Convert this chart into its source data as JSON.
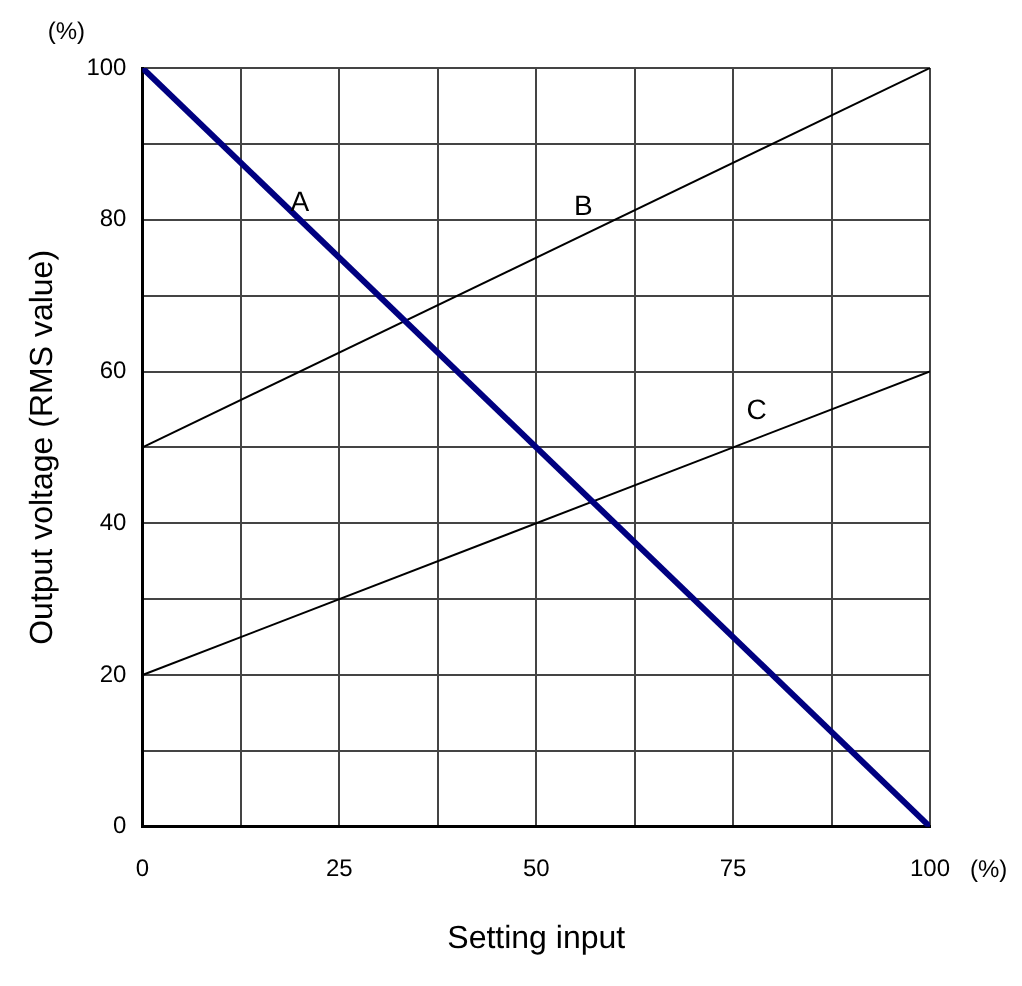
{
  "chart_data": {
    "type": "line",
    "xlabel": "Setting input",
    "ylabel": "Output voltage (RMS value)",
    "x": [
      0,
      100
    ],
    "series": [
      {
        "name": "A",
        "color": "#000080",
        "values": [
          100,
          0
        ]
      },
      {
        "name": "B",
        "color": "#000000",
        "values": [
          50,
          100
        ]
      },
      {
        "name": "C",
        "color": "#000000",
        "values": [
          20,
          60
        ]
      }
    ],
    "xlim": [
      0,
      100
    ],
    "ylim": [
      0,
      100
    ],
    "xticks": [
      0,
      {
        "value": 12.5,
        "label": null
      },
      25,
      {
        "value": 37.5,
        "label": null
      },
      50,
      {
        "value": 62.5,
        "label": null
      },
      75,
      {
        "value": 87.5,
        "label": null
      },
      100
    ],
    "yticks": [
      0,
      {
        "value": 10,
        "label": null
      },
      20,
      {
        "value": 30,
        "label": null
      },
      40,
      {
        "value": 50,
        "label": null
      },
      60,
      {
        "value": 70,
        "label": null
      },
      80,
      {
        "value": 90,
        "label": null
      },
      100
    ],
    "annotations": [
      "(%)",
      "(%)"
    ],
    "grid": true,
    "legend": false,
    "marker": "none",
    "line_style": "solid"
  }
}
